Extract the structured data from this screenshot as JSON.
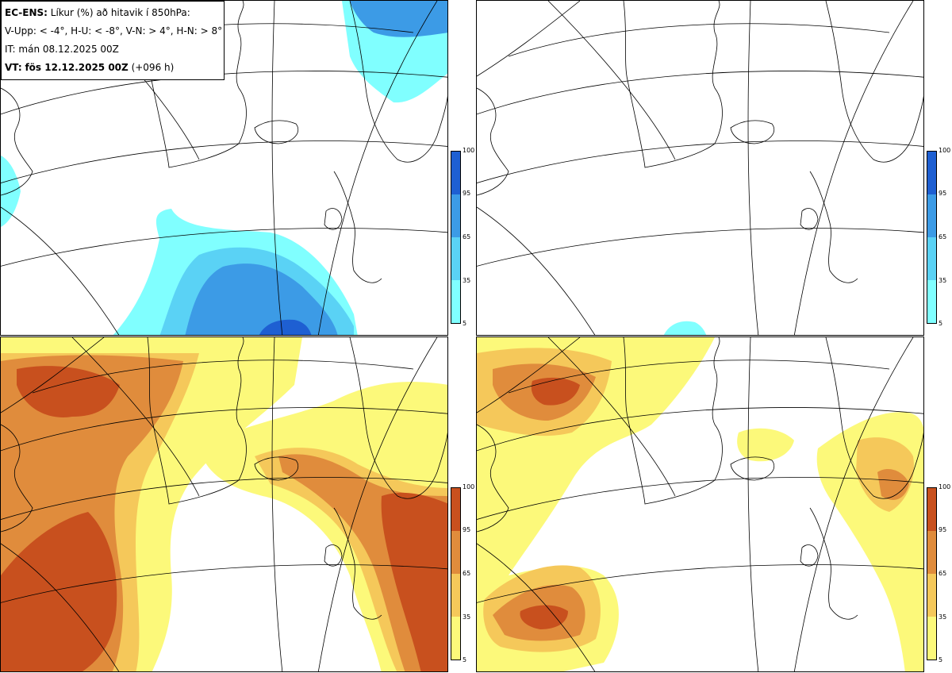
{
  "header": {
    "title_bold": "EC-ENS:",
    "title_text": "Líkur (%) að hitavik í 850hPa:",
    "thresholds": "V-Upp: < -4°, H-U: < -8°, V-N: > 4°, H-N: > 8°",
    "initial_time": "IT: mán 08.12.2025 00Z",
    "valid_label": "VT:",
    "valid_time": "fös 12.12.2025 00Z",
    "lead": "(+096 h)"
  },
  "colorbar_ticks": [
    "100",
    "95",
    "65",
    "35",
    "5"
  ],
  "colors": {
    "cold": [
      "#80ffff",
      "#5ad2f5",
      "#3c9be6",
      "#1e5fd2"
    ],
    "warm": [
      "#fcf97a",
      "#f5c85a",
      "#e08c3c",
      "#c8501e"
    ]
  },
  "panels": [
    {
      "position": "top-left",
      "label": "V-Upp",
      "scale": "cold"
    },
    {
      "position": "top-right",
      "label": "H-U",
      "scale": "cold"
    },
    {
      "position": "bottom-left",
      "label": "V-N",
      "scale": "warm"
    },
    {
      "position": "bottom-right",
      "label": "H-N",
      "scale": "warm"
    }
  ]
}
